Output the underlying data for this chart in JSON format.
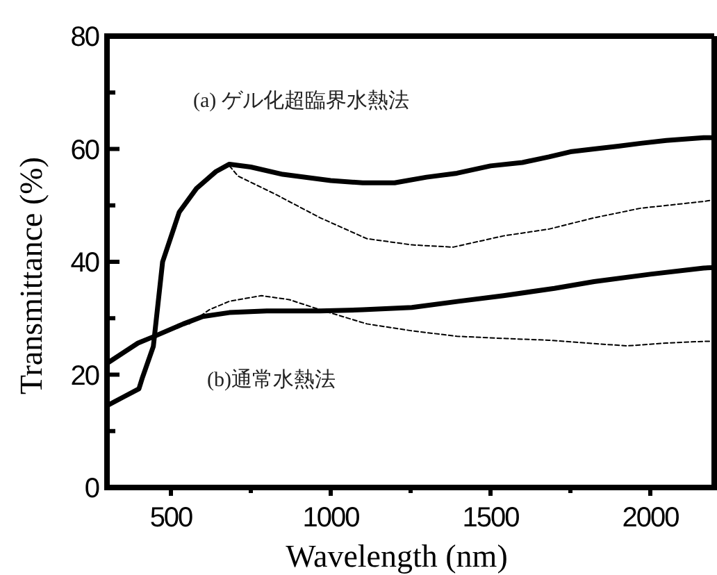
{
  "chart_data": {
    "type": "line",
    "xlabel": "Wavelength (nm)",
    "ylabel": "Transmittance (%)",
    "annotations": [
      "(a) ゲル化超臨界水熱法",
      "(b)通常水熱法"
    ],
    "xlim": [
      300,
      2200
    ],
    "ylim": [
      0,
      80
    ],
    "xticks": [
      500,
      {
        "value": 750,
        "label": null
      },
      1000,
      {
        "value": 1250,
        "label": null
      },
      1500,
      {
        "value": 1750,
        "label": null
      },
      2000
    ],
    "yticks": [
      0,
      {
        "value": 10,
        "label": null
      },
      20,
      {
        "value": 30,
        "label": null
      },
      40,
      {
        "value": 50,
        "label": null
      },
      60,
      {
        "value": 70,
        "label": null
      },
      80
    ],
    "grid": false,
    "series": [
      {
        "color": "#000000",
        "line_style": "solid",
        "x": [
          300,
          350,
          400,
          411,
          445,
          474,
          526,
          580,
          641,
          683,
          750,
          850,
          1000,
          1100,
          1200,
          1300,
          1395,
          1500,
          1600,
          1683,
          1750,
          1824,
          1900,
          1970,
          2050,
          2167,
          2200
        ],
        "values": [
          14.5,
          16,
          17.5,
          19.5,
          25,
          40,
          48.8,
          53,
          56,
          57.3,
          56.8,
          55.5,
          54.4,
          54,
          54,
          55,
          55.7,
          57,
          57.6,
          58.6,
          59.5,
          60,
          60.5,
          61,
          61.5,
          62,
          62
        ]
      },
      {
        "color": "#000000",
        "line_style": "dashed",
        "x": [
          683,
          710,
          826,
          967,
          1113,
          1254,
          1383,
          1541,
          1683,
          1824,
          1970,
          2167,
          2200
        ],
        "values": [
          57,
          55.2,
          52,
          47.8,
          44.1,
          43,
          42.6,
          44.6,
          45.8,
          47.8,
          49.5,
          50.7,
          51
        ]
      },
      {
        "color": "#000000",
        "line_style": "solid",
        "x": [
          300,
          397,
          440,
          539,
          600,
          683,
          800,
          967,
          1100,
          1254,
          1400,
          1541,
          1700,
          1824,
          2000,
          2167,
          2200
        ],
        "values": [
          22,
          25.6,
          26.6,
          29,
          30.3,
          31,
          31.3,
          31.3,
          31.5,
          31.9,
          33,
          34,
          35.3,
          36.5,
          37.8,
          38.9,
          39
        ]
      },
      {
        "color": "#000000",
        "line_style": "dashed",
        "x": [
          557,
          620,
          683,
          783,
          870,
          967,
          1113,
          1250,
          1395,
          1550,
          1683,
          1800,
          1927,
          2050,
          2167,
          2200
        ],
        "values": [
          29,
          31.5,
          33,
          34,
          33.3,
          31.5,
          29,
          27.8,
          26.8,
          26.4,
          26.1,
          25.6,
          25.1,
          25.6,
          25.9,
          25.9
        ]
      }
    ]
  }
}
